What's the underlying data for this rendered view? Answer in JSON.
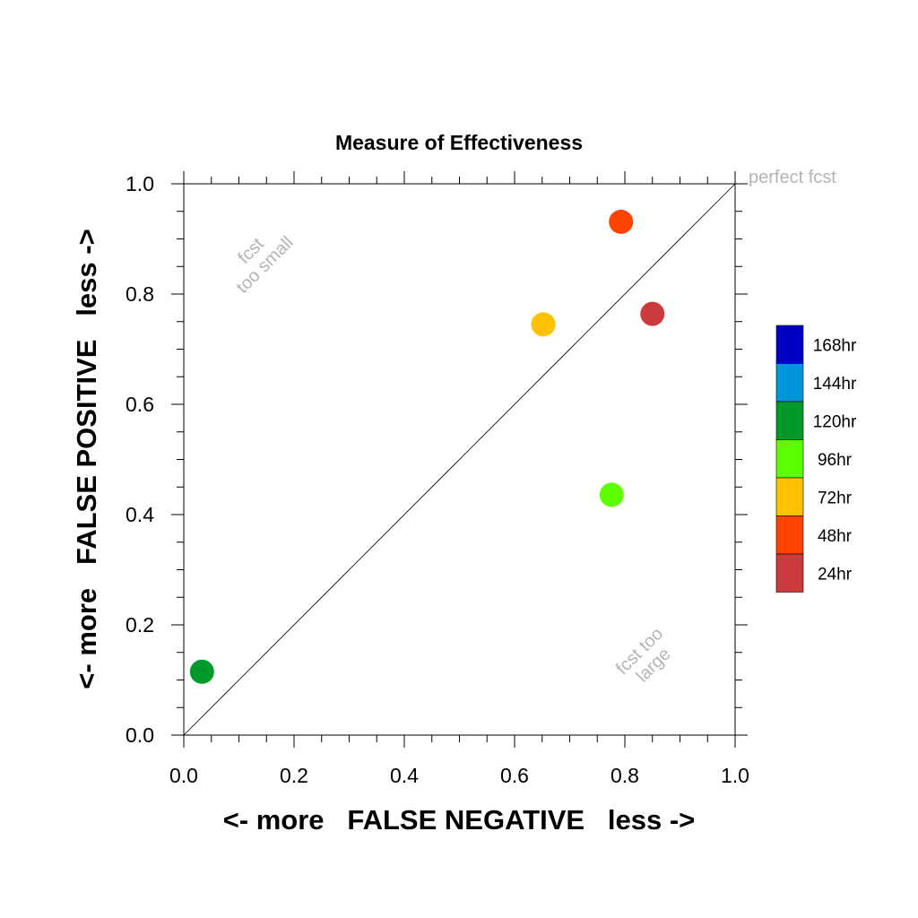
{
  "chart_data": {
    "type": "scatter",
    "title": "Measure of Effectiveness",
    "xlabel": "<- more   FALSE NEGATIVE   less ->",
    "ylabel": "<- more   FALSE POSITIVE   less ->",
    "xlim": [
      0.0,
      1.0
    ],
    "ylim": [
      0.0,
      1.0
    ],
    "xticks": [
      "0.0",
      "0.2",
      "0.4",
      "0.6",
      "0.8",
      "1.0"
    ],
    "yticks": [
      "0.0",
      "0.2",
      "0.4",
      "0.6",
      "0.8",
      "1.0"
    ],
    "grid": false,
    "reference_line": {
      "from": [
        0,
        0
      ],
      "to": [
        1,
        1
      ]
    },
    "annotations": {
      "perfect": "perfect fcst",
      "too_small_1": "fcst",
      "too_small_2": "too small",
      "too_large_1": "fcst too",
      "too_large_2": "large"
    },
    "points": [
      {
        "series": "120hr",
        "x": 0.033,
        "y": 0.115,
        "color": "#00992a"
      },
      {
        "series": "72hr",
        "x": 0.652,
        "y": 0.745,
        "color": "#ffc100"
      },
      {
        "series": "96hr",
        "x": 0.776,
        "y": 0.436,
        "color": "#5cff00"
      },
      {
        "series": "48hr",
        "x": 0.793,
        "y": 0.931,
        "color": "#ff4400"
      },
      {
        "series": "24hr",
        "x": 0.85,
        "y": 0.764,
        "color": "#cc3b3b"
      }
    ],
    "legend": {
      "placement": "right",
      "entries": [
        {
          "label": "168hr",
          "color": "#0000c2"
        },
        {
          "label": "144hr",
          "color": "#0096d9"
        },
        {
          "label": "120hr",
          "color": "#00992a"
        },
        {
          "label": "96hr",
          "color": "#5cff00"
        },
        {
          "label": "72hr",
          "color": "#ffc100"
        },
        {
          "label": "48hr",
          "color": "#ff4400"
        },
        {
          "label": "24hr",
          "color": "#cc3b3b"
        }
      ]
    }
  }
}
